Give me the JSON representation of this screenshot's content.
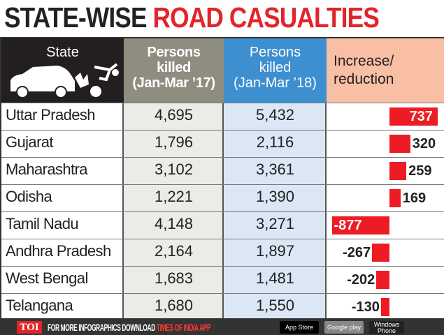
{
  "title": {
    "part1": "STATE-WISE",
    "part2": "ROAD CASUALTIES"
  },
  "colors": {
    "title_accent": "#e3242b",
    "bar": "#ed1c24",
    "col1_header": "#8e8d80",
    "col2_header": "#3e8fd0",
    "col3_header": "#f9bfa5"
  },
  "chart_data": {
    "type": "table",
    "columns": [
      "State",
      "Persons killed (Jan-Mar '17)",
      "Persons killed (Jan-Mar '18)",
      "Increase/ reduction"
    ],
    "headers": {
      "state": "State",
      "c1": [
        "Persons",
        "killed",
        "(Jan-Mar ’17)"
      ],
      "c2": [
        "Persons",
        "killed",
        "(Jan-Mar ’18)"
      ],
      "c3": [
        "Increase/",
        "reduction"
      ]
    },
    "rows": [
      {
        "state": "Uttar Pradesh",
        "y17": "4,695",
        "y18": "5,432",
        "change": 737,
        "label": "737"
      },
      {
        "state": "Gujarat",
        "y17": "1,796",
        "y18": "2,116",
        "change": 320,
        "label": "320"
      },
      {
        "state": "Maharashtra",
        "y17": "3,102",
        "y18": "3,361",
        "change": 259,
        "label": "259"
      },
      {
        "state": "Odisha",
        "y17": "1,221",
        "y18": "1,390",
        "change": 169,
        "label": "169"
      },
      {
        "state": "Tamil Nadu",
        "y17": "4,148",
        "y18": "3,271",
        "change": -877,
        "label": "-877"
      },
      {
        "state": "Andhra Pradesh",
        "y17": "2,164",
        "y18": "1,897",
        "change": -267,
        "label": "-267"
      },
      {
        "state": "West Bengal",
        "y17": "1,683",
        "y18": "1,481",
        "change": -202,
        "label": "-202"
      },
      {
        "state": "Telangana",
        "y17": "1,680",
        "y18": "1,550",
        "change": -130,
        "label": "-130"
      }
    ]
  },
  "footer": {
    "logo": "TOI",
    "text": "FOR MORE  INFOGRAPHICS DOWNLOAD ",
    "highlight": "TIMES OF INDIA  APP",
    "app_store": "App Store",
    "google_play": "Google play",
    "windows": "Windows Phone"
  }
}
